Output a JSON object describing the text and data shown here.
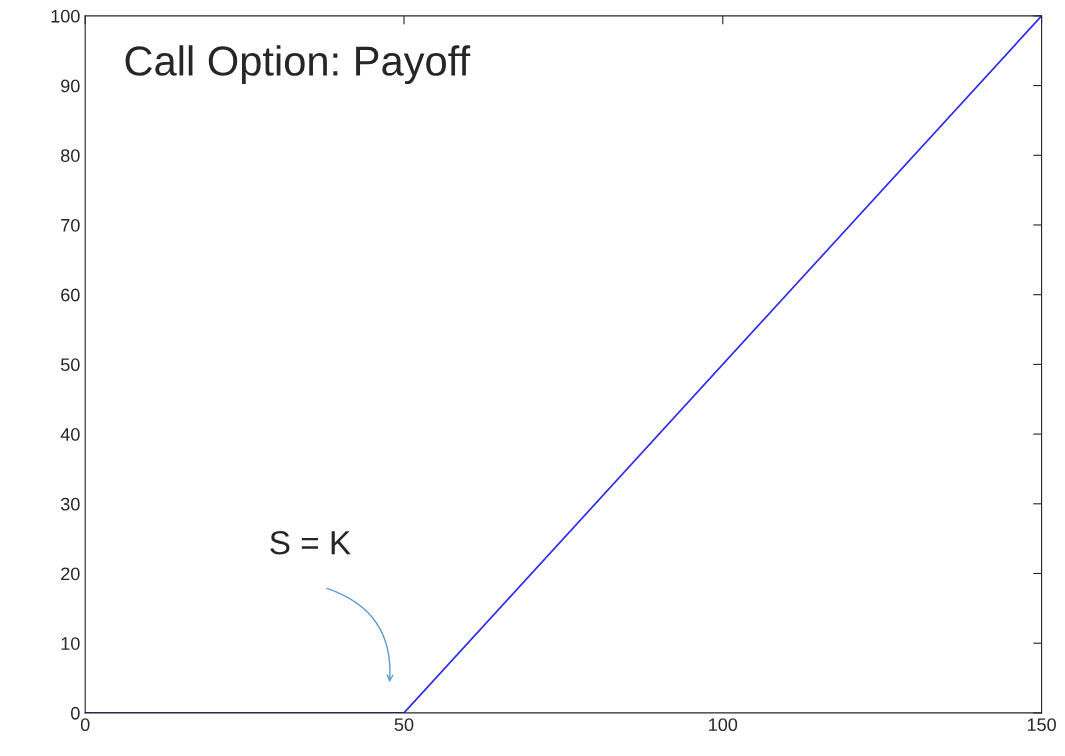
{
  "chart_data": {
    "type": "line",
    "title": "Call Option: Payoff",
    "x": [
      0,
      50,
      150
    ],
    "series": [
      {
        "color": "#2b2bf5",
        "values": [
          0,
          0,
          100
        ]
      }
    ],
    "xlim": [
      0,
      150
    ],
    "xticks": [
      0,
      50,
      100,
      150
    ],
    "ylim": [
      0,
      100
    ],
    "yticks": [
      0,
      10,
      20,
      30,
      40,
      50,
      60,
      70,
      80,
      90,
      100
    ],
    "grid": false,
    "legend": false,
    "marker": "none",
    "line_style": "solid",
    "annotations": [
      "S = K"
    ]
  }
}
